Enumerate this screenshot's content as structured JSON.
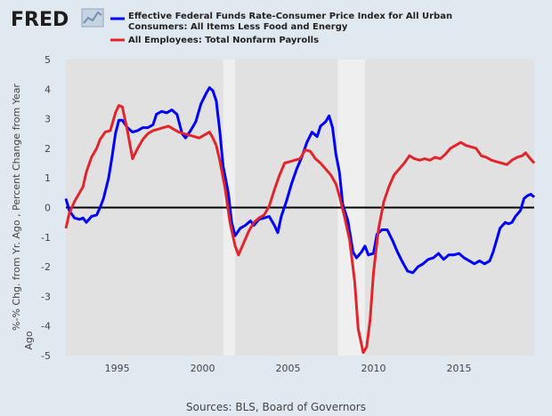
{
  "branding": {
    "logo_text": "FRED",
    "logo_icon": "fred-chart-icon"
  },
  "colors": {
    "page_bg": "#e1e9f0",
    "plot_bg": "#e1e1e1",
    "recession": "#efefef",
    "series_1": "#0000ff",
    "series_2": "#e3242b",
    "zero_line": "#000000"
  },
  "chart_data": {
    "type": "line",
    "ylabel": "%-% Chg. from Yr. Ago , Percent Change from Year Ago",
    "source": "Sources: BLS, Board of Governors",
    "xlim": [
      1992.0,
      2019.4
    ],
    "ylim": [
      -5,
      5
    ],
    "x_ticks": [
      1995,
      2000,
      2005,
      2010,
      2015
    ],
    "y_ticks": [
      -5,
      -4,
      -3,
      -2,
      -1,
      0,
      1,
      2,
      3,
      4,
      5
    ],
    "grid": false,
    "legend_position": "top",
    "recessions": [
      [
        2001.2,
        2001.9
      ],
      [
        2007.9,
        2009.5
      ]
    ],
    "series": [
      {
        "name": "Effective Federal Funds Rate-Consumer Price Index for All Urban Consumers: All Items Less Food and Energy",
        "color": "#0000ff",
        "points": [
          [
            1992.0,
            0.3
          ],
          [
            1992.2,
            -0.1
          ],
          [
            1992.5,
            -0.35
          ],
          [
            1992.8,
            -0.4
          ],
          [
            1993.0,
            -0.35
          ],
          [
            1993.2,
            -0.5
          ],
          [
            1993.5,
            -0.3
          ],
          [
            1993.8,
            -0.25
          ],
          [
            1994.0,
            0.0
          ],
          [
            1994.2,
            0.3
          ],
          [
            1994.5,
            1.0
          ],
          [
            1994.7,
            1.7
          ],
          [
            1994.9,
            2.5
          ],
          [
            1995.1,
            2.95
          ],
          [
            1995.3,
            2.95
          ],
          [
            1995.6,
            2.7
          ],
          [
            1995.9,
            2.55
          ],
          [
            1996.2,
            2.6
          ],
          [
            1996.5,
            2.7
          ],
          [
            1996.8,
            2.7
          ],
          [
            1997.1,
            2.8
          ],
          [
            1997.3,
            3.15
          ],
          [
            1997.6,
            3.25
          ],
          [
            1997.9,
            3.2
          ],
          [
            1998.2,
            3.3
          ],
          [
            1998.5,
            3.15
          ],
          [
            1998.8,
            2.5
          ],
          [
            1999.0,
            2.35
          ],
          [
            1999.3,
            2.6
          ],
          [
            1999.6,
            2.9
          ],
          [
            1999.9,
            3.5
          ],
          [
            2000.2,
            3.85
          ],
          [
            2000.4,
            4.05
          ],
          [
            2000.6,
            3.95
          ],
          [
            2000.8,
            3.6
          ],
          [
            2001.0,
            2.6
          ],
          [
            2001.2,
            1.4
          ],
          [
            2001.5,
            0.5
          ],
          [
            2001.7,
            -0.5
          ],
          [
            2001.9,
            -0.95
          ],
          [
            2002.2,
            -0.7
          ],
          [
            2002.5,
            -0.6
          ],
          [
            2002.8,
            -0.45
          ],
          [
            2003.0,
            -0.6
          ],
          [
            2003.3,
            -0.4
          ],
          [
            2003.6,
            -0.35
          ],
          [
            2003.9,
            -0.3
          ],
          [
            2004.2,
            -0.6
          ],
          [
            2004.4,
            -0.85
          ],
          [
            2004.6,
            -0.3
          ],
          [
            2004.9,
            0.2
          ],
          [
            2005.2,
            0.8
          ],
          [
            2005.5,
            1.3
          ],
          [
            2005.8,
            1.7
          ],
          [
            2006.1,
            2.2
          ],
          [
            2006.4,
            2.55
          ],
          [
            2006.7,
            2.4
          ],
          [
            2006.9,
            2.75
          ],
          [
            2007.2,
            2.9
          ],
          [
            2007.4,
            3.1
          ],
          [
            2007.6,
            2.7
          ],
          [
            2007.8,
            1.8
          ],
          [
            2008.0,
            1.2
          ],
          [
            2008.2,
            0.1
          ],
          [
            2008.5,
            -0.45
          ],
          [
            2008.8,
            -1.5
          ],
          [
            2009.0,
            -1.7
          ],
          [
            2009.3,
            -1.5
          ],
          [
            2009.5,
            -1.3
          ],
          [
            2009.7,
            -1.6
          ],
          [
            2010.0,
            -1.55
          ],
          [
            2010.2,
            -0.9
          ],
          [
            2010.5,
            -0.75
          ],
          [
            2010.8,
            -0.75
          ],
          [
            2011.1,
            -1.1
          ],
          [
            2011.4,
            -1.5
          ],
          [
            2011.7,
            -1.85
          ],
          [
            2012.0,
            -2.15
          ],
          [
            2012.3,
            -2.2
          ],
          [
            2012.6,
            -2.0
          ],
          [
            2012.9,
            -1.9
          ],
          [
            2013.2,
            -1.75
          ],
          [
            2013.5,
            -1.7
          ],
          [
            2013.8,
            -1.55
          ],
          [
            2014.1,
            -1.75
          ],
          [
            2014.4,
            -1.6
          ],
          [
            2014.7,
            -1.6
          ],
          [
            2015.0,
            -1.55
          ],
          [
            2015.3,
            -1.7
          ],
          [
            2015.6,
            -1.8
          ],
          [
            2015.9,
            -1.9
          ],
          [
            2016.2,
            -1.8
          ],
          [
            2016.5,
            -1.9
          ],
          [
            2016.8,
            -1.8
          ],
          [
            2017.0,
            -1.5
          ],
          [
            2017.2,
            -1.1
          ],
          [
            2017.4,
            -0.7
          ],
          [
            2017.7,
            -0.5
          ],
          [
            2017.9,
            -0.55
          ],
          [
            2018.1,
            -0.5
          ],
          [
            2018.3,
            -0.3
          ],
          [
            2018.6,
            -0.1
          ],
          [
            2018.8,
            0.3
          ],
          [
            2019.0,
            0.4
          ],
          [
            2019.2,
            0.45
          ],
          [
            2019.4,
            0.35
          ]
        ]
      },
      {
        "name": "All Employees: Total Nonfarm Payrolls",
        "color": "#e3242b",
        "points": [
          [
            1992.0,
            -0.7
          ],
          [
            1992.2,
            -0.2
          ],
          [
            1992.5,
            0.2
          ],
          [
            1992.8,
            0.5
          ],
          [
            1993.0,
            0.7
          ],
          [
            1993.2,
            1.2
          ],
          [
            1993.5,
            1.7
          ],
          [
            1993.8,
            2.0
          ],
          [
            1994.0,
            2.3
          ],
          [
            1994.3,
            2.55
          ],
          [
            1994.6,
            2.6
          ],
          [
            1994.9,
            3.2
          ],
          [
            1995.1,
            3.45
          ],
          [
            1995.3,
            3.4
          ],
          [
            1995.6,
            2.6
          ],
          [
            1995.9,
            1.65
          ],
          [
            1996.2,
            2.0
          ],
          [
            1996.5,
            2.3
          ],
          [
            1996.8,
            2.5
          ],
          [
            1997.1,
            2.6
          ],
          [
            1997.4,
            2.65
          ],
          [
            1997.7,
            2.7
          ],
          [
            1998.0,
            2.75
          ],
          [
            1998.3,
            2.65
          ],
          [
            1998.6,
            2.55
          ],
          [
            1998.9,
            2.5
          ],
          [
            1999.2,
            2.45
          ],
          [
            1999.5,
            2.4
          ],
          [
            1999.8,
            2.35
          ],
          [
            2000.1,
            2.45
          ],
          [
            2000.4,
            2.55
          ],
          [
            2000.6,
            2.35
          ],
          [
            2000.8,
            2.1
          ],
          [
            2001.0,
            1.6
          ],
          [
            2001.3,
            0.7
          ],
          [
            2001.6,
            -0.5
          ],
          [
            2001.9,
            -1.3
          ],
          [
            2002.1,
            -1.6
          ],
          [
            2002.4,
            -1.2
          ],
          [
            2002.7,
            -0.8
          ],
          [
            2003.0,
            -0.5
          ],
          [
            2003.3,
            -0.35
          ],
          [
            2003.6,
            -0.25
          ],
          [
            2003.9,
            0.05
          ],
          [
            2004.2,
            0.6
          ],
          [
            2004.5,
            1.1
          ],
          [
            2004.8,
            1.5
          ],
          [
            2005.1,
            1.55
          ],
          [
            2005.4,
            1.6
          ],
          [
            2005.7,
            1.65
          ],
          [
            2006.0,
            1.95
          ],
          [
            2006.3,
            1.9
          ],
          [
            2006.6,
            1.65
          ],
          [
            2006.9,
            1.5
          ],
          [
            2007.2,
            1.3
          ],
          [
            2007.5,
            1.1
          ],
          [
            2007.8,
            0.8
          ],
          [
            2008.0,
            0.4
          ],
          [
            2008.3,
            -0.3
          ],
          [
            2008.6,
            -1.1
          ],
          [
            2008.9,
            -2.5
          ],
          [
            2009.1,
            -4.1
          ],
          [
            2009.4,
            -4.9
          ],
          [
            2009.6,
            -4.7
          ],
          [
            2009.8,
            -3.8
          ],
          [
            2010.0,
            -2.2
          ],
          [
            2010.3,
            -0.7
          ],
          [
            2010.6,
            0.2
          ],
          [
            2010.9,
            0.7
          ],
          [
            2011.2,
            1.1
          ],
          [
            2011.5,
            1.3
          ],
          [
            2011.8,
            1.5
          ],
          [
            2012.1,
            1.75
          ],
          [
            2012.4,
            1.65
          ],
          [
            2012.7,
            1.6
          ],
          [
            2013.0,
            1.65
          ],
          [
            2013.3,
            1.6
          ],
          [
            2013.6,
            1.7
          ],
          [
            2013.9,
            1.65
          ],
          [
            2014.2,
            1.8
          ],
          [
            2014.5,
            2.0
          ],
          [
            2014.8,
            2.1
          ],
          [
            2015.1,
            2.2
          ],
          [
            2015.4,
            2.1
          ],
          [
            2015.7,
            2.05
          ],
          [
            2016.0,
            2.0
          ],
          [
            2016.3,
            1.75
          ],
          [
            2016.6,
            1.7
          ],
          [
            2016.9,
            1.6
          ],
          [
            2017.2,
            1.55
          ],
          [
            2017.5,
            1.5
          ],
          [
            2017.8,
            1.45
          ],
          [
            2018.1,
            1.6
          ],
          [
            2018.4,
            1.7
          ],
          [
            2018.7,
            1.75
          ],
          [
            2018.9,
            1.85
          ],
          [
            2019.1,
            1.7
          ],
          [
            2019.4,
            1.5
          ]
        ]
      }
    ]
  }
}
